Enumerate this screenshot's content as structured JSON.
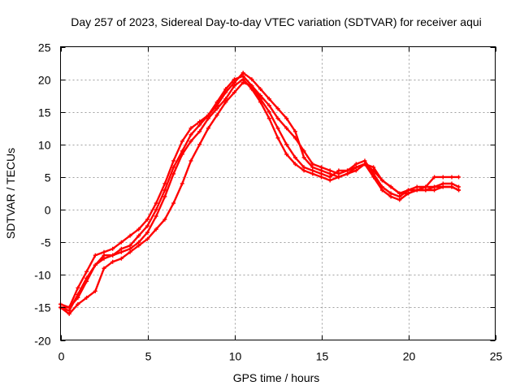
{
  "chart_data": {
    "type": "line",
    "title": "Day 257 of 2023, Sidereal Day-to-day VTEC variation (SDTVAR) for receiver aqui",
    "xlabel": "GPS time / hours",
    "ylabel": "SDTVAR / TECUs",
    "xlim": [
      0,
      25
    ],
    "ylim": [
      -20,
      25
    ],
    "xticks": [
      0,
      5,
      10,
      15,
      20,
      25
    ],
    "yticks": [
      -20,
      -15,
      -10,
      -5,
      0,
      5,
      10,
      15,
      20,
      25
    ],
    "grid": true,
    "color": "#ff0000",
    "series": [
      {
        "name": "trace-1",
        "x": [
          0.0,
          0.5,
          1.0,
          1.5,
          2.0,
          2.5,
          3.0,
          3.5,
          4.0,
          4.5,
          5.0,
          5.5,
          6.0,
          6.5,
          7.0,
          7.5,
          8.0,
          8.5,
          9.0,
          9.5,
          10.0,
          10.5,
          11.0,
          11.5,
          12.0,
          12.5,
          13.0,
          13.5,
          14.0,
          14.5,
          15.0,
          15.5,
          16.0,
          16.5,
          17.0,
          17.5,
          18.0,
          18.5,
          19.0,
          19.5,
          20.0,
          20.5,
          21.0,
          21.5,
          22.0,
          22.5,
          22.9
        ],
        "y": [
          -15.0,
          -15.5,
          -13.0,
          -10.5,
          -8.5,
          -7.5,
          -7.0,
          -6.5,
          -6.0,
          -5.0,
          -3.5,
          -1.0,
          2.0,
          5.5,
          8.5,
          10.5,
          12.0,
          14.0,
          15.5,
          17.0,
          19.0,
          20.0,
          18.5,
          16.5,
          14.0,
          11.0,
          8.5,
          7.0,
          6.0,
          5.5,
          5.0,
          4.5,
          5.0,
          5.5,
          6.5,
          7.0,
          5.0,
          3.0,
          2.0,
          1.5,
          2.5,
          3.0,
          3.0,
          3.0,
          3.5,
          3.5,
          3.0
        ]
      },
      {
        "name": "trace-2",
        "x": [
          0.0,
          0.5,
          1.0,
          1.5,
          2.0,
          2.5,
          3.0,
          3.5,
          4.0,
          4.5,
          5.0,
          5.5,
          6.0,
          6.5,
          7.0,
          7.5,
          8.0,
          8.5,
          9.0,
          9.5,
          10.0,
          10.5,
          11.0,
          11.5,
          12.0,
          12.5,
          13.0,
          13.5,
          14.0,
          14.5,
          15.0,
          15.5,
          16.0,
          16.5,
          17.0,
          17.5,
          18.0,
          18.5,
          19.0,
          19.5,
          20.0,
          20.5,
          21.0,
          21.5,
          22.0,
          22.5,
          22.9
        ],
        "y": [
          -15.0,
          -16.0,
          -14.5,
          -13.5,
          -12.5,
          -9.0,
          -8.0,
          -7.5,
          -6.5,
          -5.5,
          -4.5,
          -3.0,
          -1.5,
          1.0,
          4.0,
          7.5,
          10.0,
          12.5,
          14.5,
          16.5,
          18.0,
          19.5,
          19.0,
          17.5,
          16.0,
          14.0,
          12.5,
          11.0,
          9.0,
          7.0,
          6.5,
          6.0,
          5.5,
          6.0,
          6.5,
          7.0,
          6.0,
          4.5,
          3.5,
          2.5,
          3.0,
          3.5,
          3.5,
          3.5,
          4.0,
          4.0,
          3.5
        ]
      },
      {
        "name": "trace-3",
        "x": [
          0.0,
          0.5,
          1.0,
          1.5,
          2.0,
          2.5,
          3.0,
          3.5,
          4.0,
          4.5,
          5.0,
          5.5,
          6.0,
          6.5,
          7.0,
          7.5,
          8.0,
          8.5,
          9.0,
          9.5,
          10.0,
          10.5,
          11.0,
          11.5,
          12.0,
          12.5,
          13.0,
          13.5,
          14.0,
          14.5,
          15.0,
          15.5,
          16.0,
          16.5,
          17.0,
          17.5,
          18.0,
          18.5,
          19.0,
          19.5,
          20.0,
          20.5,
          21.0,
          21.5,
          22.0,
          22.5,
          22.9
        ],
        "y": [
          -14.5,
          -15.0,
          -12.0,
          -9.5,
          -7.0,
          -6.5,
          -6.0,
          -5.0,
          -4.0,
          -3.0,
          -1.5,
          1.0,
          4.0,
          7.5,
          10.5,
          12.5,
          13.5,
          14.5,
          16.5,
          18.5,
          20.0,
          20.5,
          19.0,
          17.0,
          15.0,
          12.5,
          10.0,
          8.0,
          6.5,
          6.0,
          5.5,
          5.0,
          6.0,
          6.0,
          7.0,
          7.5,
          5.5,
          3.5,
          2.5,
          2.0,
          3.0,
          3.0,
          3.0,
          3.5,
          3.5,
          3.5,
          3.0
        ]
      },
      {
        "name": "trace-4",
        "x": [
          0.0,
          0.5,
          1.0,
          1.5,
          2.0,
          2.5,
          3.0,
          3.5,
          4.0,
          4.5,
          5.0,
          5.5,
          6.0,
          6.5,
          7.0,
          7.5,
          8.0,
          8.5,
          9.0,
          9.5,
          10.0,
          10.5,
          11.0,
          11.5,
          12.0,
          12.5,
          13.0,
          13.5,
          14.0,
          14.5,
          15.0,
          15.5,
          16.0,
          16.5,
          17.0,
          17.5,
          18.0,
          18.5,
          19.0,
          19.5,
          20.0,
          20.5,
          21.0,
          21.5,
          22.0,
          22.5,
          22.9
        ],
        "y": [
          -15.0,
          -15.0,
          -13.5,
          -11.0,
          -8.5,
          -7.0,
          -7.0,
          -6.0,
          -5.5,
          -4.0,
          -2.5,
          0.0,
          3.0,
          6.5,
          9.0,
          11.5,
          13.0,
          14.5,
          16.0,
          18.0,
          19.5,
          21.0,
          20.0,
          18.5,
          17.0,
          15.5,
          14.0,
          12.0,
          8.0,
          6.5,
          6.0,
          5.5,
          5.0,
          5.5,
          6.0,
          7.0,
          6.5,
          4.5,
          3.5,
          2.5,
          2.5,
          3.0,
          3.5,
          5.0,
          5.0,
          5.0,
          5.0
        ]
      }
    ]
  }
}
